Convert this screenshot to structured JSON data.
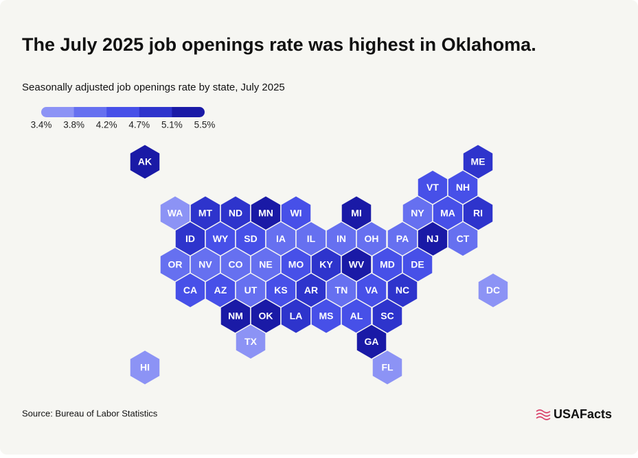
{
  "title": "The July 2025 job openings rate was highest in Oklahoma.",
  "subtitle": "Seasonally adjusted job openings rate by state, July 2025",
  "legend": {
    "colors": [
      "#8c93f5",
      "#6670f0",
      "#4750e8",
      "#2e34cc",
      "#1a1aa6"
    ],
    "ticks": [
      {
        "value": 3.4,
        "label": "3.4%"
      },
      {
        "value": 3.8,
        "label": "3.8%"
      },
      {
        "value": 4.2,
        "label": "4.2%"
      },
      {
        "value": 4.7,
        "label": "4.7%"
      },
      {
        "value": 5.1,
        "label": "5.1%"
      },
      {
        "value": 5.5,
        "label": "5.5%"
      }
    ]
  },
  "states": [
    {
      "label": "AK",
      "color": "#1a1aa6"
    },
    {
      "label": "ME",
      "color": "#2e34cc"
    },
    {
      "label": "VT",
      "color": "#4750e8"
    },
    {
      "label": "NH",
      "color": "#4750e8"
    },
    {
      "label": "WA",
      "color": "#8c93f5"
    },
    {
      "label": "MT",
      "color": "#2e34cc"
    },
    {
      "label": "ND",
      "color": "#2e34cc"
    },
    {
      "label": "MN",
      "color": "#1a1aa6"
    },
    {
      "label": "WI",
      "color": "#4750e8"
    },
    {
      "label": "MI",
      "color": "#1a1aa6"
    },
    {
      "label": "NY",
      "color": "#6670f0"
    },
    {
      "label": "MA",
      "color": "#4750e8"
    },
    {
      "label": "RI",
      "color": "#2e34cc"
    },
    {
      "label": "ID",
      "color": "#2e34cc"
    },
    {
      "label": "WY",
      "color": "#4750e8"
    },
    {
      "label": "SD",
      "color": "#4750e8"
    },
    {
      "label": "IA",
      "color": "#6670f0"
    },
    {
      "label": "IL",
      "color": "#6670f0"
    },
    {
      "label": "IN",
      "color": "#6670f0"
    },
    {
      "label": "OH",
      "color": "#6670f0"
    },
    {
      "label": "PA",
      "color": "#6670f0"
    },
    {
      "label": "NJ",
      "color": "#1a1aa6"
    },
    {
      "label": "CT",
      "color": "#6670f0"
    },
    {
      "label": "OR",
      "color": "#6670f0"
    },
    {
      "label": "NV",
      "color": "#6670f0"
    },
    {
      "label": "CO",
      "color": "#6670f0"
    },
    {
      "label": "NE",
      "color": "#6670f0"
    },
    {
      "label": "MO",
      "color": "#4750e8"
    },
    {
      "label": "KY",
      "color": "#2e34cc"
    },
    {
      "label": "WV",
      "color": "#1a1aa6"
    },
    {
      "label": "MD",
      "color": "#4750e8"
    },
    {
      "label": "DE",
      "color": "#4750e8"
    },
    {
      "label": "CA",
      "color": "#4750e8"
    },
    {
      "label": "AZ",
      "color": "#4750e8"
    },
    {
      "label": "UT",
      "color": "#6670f0"
    },
    {
      "label": "KS",
      "color": "#4750e8"
    },
    {
      "label": "AR",
      "color": "#2e34cc"
    },
    {
      "label": "TN",
      "color": "#6670f0"
    },
    {
      "label": "VA",
      "color": "#4750e8"
    },
    {
      "label": "NC",
      "color": "#2e34cc"
    },
    {
      "label": "DC",
      "color": "#8c93f5"
    },
    {
      "label": "NM",
      "color": "#1a1aa6"
    },
    {
      "label": "OK",
      "color": "#1a1aa6"
    },
    {
      "label": "LA",
      "color": "#2e34cc"
    },
    {
      "label": "MS",
      "color": "#4750e8"
    },
    {
      "label": "AL",
      "color": "#4750e8"
    },
    {
      "label": "SC",
      "color": "#2e34cc"
    },
    {
      "label": "TX",
      "color": "#8c93f5"
    },
    {
      "label": "GA",
      "color": "#1a1aa6"
    },
    {
      "label": "HI",
      "color": "#8c93f5"
    },
    {
      "label": "FL",
      "color": "#8c93f5"
    }
  ],
  "source": "Source: Bureau of Labor Statistics",
  "logo": "USAFacts"
}
